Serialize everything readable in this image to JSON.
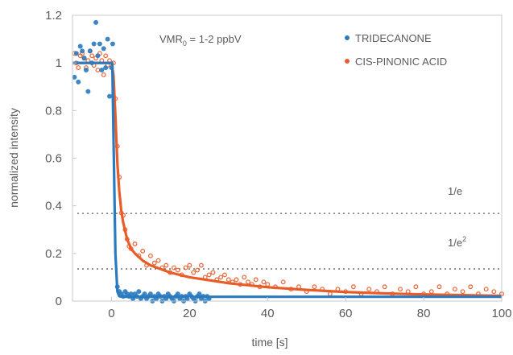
{
  "chart_data": {
    "type": "scatter",
    "xlabel": "time [s]",
    "ylabel": "normalized intensity",
    "xlim": [
      -10,
      100
    ],
    "ylim": [
      0,
      1.2
    ],
    "xticks": [
      0,
      20,
      40,
      60,
      80,
      100
    ],
    "yticks": [
      0,
      0.2,
      0.4,
      0.6,
      0.8,
      1,
      1.2
    ],
    "ytick_labels": [
      "0",
      "0.2",
      "0.4",
      "0.6",
      "0.8",
      "1",
      "1.2"
    ],
    "legend_position": "top-right",
    "annotation": {
      "main": "VMR",
      "sub": "0",
      "tail": " = 1-2 ppbV"
    },
    "reference_lines": [
      {
        "label": "1/e",
        "y": 0.368
      },
      {
        "label": "1/e",
        "sup": "2",
        "y": 0.135
      }
    ],
    "series": [
      {
        "name": "TRIDECANONE",
        "color": "#2a7ac0",
        "points": [
          [
            -9.5,
            0.94
          ],
          [
            -9,
            1.04
          ],
          [
            -8.5,
            0.92
          ],
          [
            -8,
            1.07
          ],
          [
            -7.5,
            1.05
          ],
          [
            -7,
            1.02
          ],
          [
            -6.5,
            0.97
          ],
          [
            -6,
            0.88
          ],
          [
            -5.5,
            1.05
          ],
          [
            -5,
            1.0
          ],
          [
            -4.5,
            1.08
          ],
          [
            -4,
            1.17
          ],
          [
            -3.5,
            1.03
          ],
          [
            -3,
            1.08
          ],
          [
            -2.5,
            0.97
          ],
          [
            -2,
            1.06
          ],
          [
            -1.5,
            0.98
          ],
          [
            -1,
            1.1
          ],
          [
            -0.5,
            0.86
          ],
          [
            0,
            0.98
          ],
          [
            0.3,
            1.08
          ],
          [
            1.5,
            0.06
          ],
          [
            2,
            0.04
          ],
          [
            2.5,
            0.03
          ],
          [
            3,
            0.02
          ],
          [
            3.5,
            0.04
          ],
          [
            4,
            0.03
          ],
          [
            4.5,
            0.02
          ],
          [
            5,
            0.03
          ],
          [
            5.5,
            0.01
          ],
          [
            6,
            0.03
          ],
          [
            6.5,
            0.02
          ],
          [
            7,
            0.04
          ],
          [
            7.5,
            0.01
          ],
          [
            8,
            0.02
          ],
          [
            8.5,
            0.03
          ],
          [
            9,
            0.01
          ],
          [
            9.5,
            0.02
          ],
          [
            10,
            0.03
          ],
          [
            10.5,
            0.0
          ],
          [
            11,
            0.02
          ],
          [
            11.5,
            0.01
          ],
          [
            12,
            0.03
          ],
          [
            12.5,
            0.02
          ],
          [
            13,
            0.0
          ],
          [
            13.5,
            0.02
          ],
          [
            14,
            0.01
          ],
          [
            14.5,
            0.03
          ],
          [
            15,
            0.02
          ],
          [
            15.5,
            0.01
          ],
          [
            16,
            0.0
          ],
          [
            16.5,
            0.02
          ],
          [
            17,
            0.03
          ],
          [
            17.5,
            0.01
          ],
          [
            18,
            0.02
          ],
          [
            18.5,
            0.0
          ],
          [
            19,
            0.02
          ],
          [
            19.5,
            0.01
          ],
          [
            20,
            0.03
          ],
          [
            20.5,
            0.02
          ],
          [
            21,
            0.01
          ],
          [
            21.5,
            0.0
          ],
          [
            22,
            0.02
          ],
          [
            22.5,
            0.03
          ],
          [
            23,
            0.01
          ],
          [
            23.5,
            0.02
          ],
          [
            24,
            0.0
          ],
          [
            24.5,
            0.02
          ],
          [
            25,
            0.01
          ]
        ],
        "fit": [
          [
            -10,
            1.0
          ],
          [
            0.2,
            1.0
          ],
          [
            0.6,
            0.6
          ],
          [
            1,
            0.2
          ],
          [
            1.5,
            0.04
          ],
          [
            2,
            0.02
          ],
          [
            3,
            0.018
          ],
          [
            100,
            0.018
          ]
        ]
      },
      {
        "name": "CIS-PINONIC ACID",
        "color": "#e85c2a",
        "points": [
          [
            -9.5,
            1.04
          ],
          [
            -9,
            1.0
          ],
          [
            -8.5,
            0.98
          ],
          [
            -8,
            1.03
          ],
          [
            -7.5,
            1.04
          ],
          [
            -7,
            1.02
          ],
          [
            -6.5,
            0.98
          ],
          [
            -6,
            1.01
          ],
          [
            -5.5,
            1.05
          ],
          [
            -5,
            1.03
          ],
          [
            -4.5,
            0.99
          ],
          [
            -4,
            1.02
          ],
          [
            -3.5,
            0.97
          ],
          [
            -3,
            1.04
          ],
          [
            -2.5,
            1.01
          ],
          [
            -2,
            0.95
          ],
          [
            -1.5,
            1.03
          ],
          [
            -1,
            0.99
          ],
          [
            -0.5,
            1.01
          ],
          [
            0.5,
            1.0
          ],
          [
            1,
            0.85
          ],
          [
            1.5,
            0.65
          ],
          [
            2,
            0.52
          ],
          [
            2.5,
            0.37
          ],
          [
            3,
            0.36
          ],
          [
            3.5,
            0.3
          ],
          [
            4,
            0.26
          ],
          [
            4.5,
            0.23
          ],
          [
            5,
            0.22
          ],
          [
            6,
            0.24
          ],
          [
            7,
            0.19
          ],
          [
            8,
            0.21
          ],
          [
            9,
            0.15
          ],
          [
            10,
            0.19
          ],
          [
            11,
            0.16
          ],
          [
            12,
            0.17
          ],
          [
            13,
            0.14
          ],
          [
            14,
            0.15
          ],
          [
            15,
            0.12
          ],
          [
            16,
            0.14
          ],
          [
            17,
            0.13
          ],
          [
            18,
            0.11
          ],
          [
            19,
            0.14
          ],
          [
            20,
            0.15
          ],
          [
            21,
            0.12
          ],
          [
            22,
            0.13
          ],
          [
            23,
            0.15
          ],
          [
            24,
            0.1
          ],
          [
            25,
            0.11
          ],
          [
            26,
            0.12
          ],
          [
            27,
            0.09
          ],
          [
            28,
            0.1
          ],
          [
            29,
            0.11
          ],
          [
            30,
            0.09
          ],
          [
            31,
            0.08
          ],
          [
            32,
            0.09
          ],
          [
            33,
            0.07
          ],
          [
            34,
            0.1
          ],
          [
            35,
            0.08
          ],
          [
            36,
            0.07
          ],
          [
            37,
            0.09
          ],
          [
            38,
            0.06
          ],
          [
            39,
            0.08
          ],
          [
            40,
            0.07
          ],
          [
            42,
            0.06
          ],
          [
            44,
            0.08
          ],
          [
            46,
            0.05
          ],
          [
            48,
            0.06
          ],
          [
            50,
            0.04
          ],
          [
            52,
            0.06
          ],
          [
            54,
            0.05
          ],
          [
            56,
            0.03
          ],
          [
            58,
            0.05
          ],
          [
            60,
            0.04
          ],
          [
            62,
            0.06
          ],
          [
            64,
            0.03
          ],
          [
            66,
            0.05
          ],
          [
            68,
            0.04
          ],
          [
            70,
            0.06
          ],
          [
            72,
            0.03
          ],
          [
            74,
            0.05
          ],
          [
            76,
            0.04
          ],
          [
            78,
            0.06
          ],
          [
            80,
            0.03
          ],
          [
            82,
            0.04
          ],
          [
            84,
            0.06
          ],
          [
            86,
            0.03
          ],
          [
            88,
            0.05
          ],
          [
            90,
            0.04
          ],
          [
            92,
            0.06
          ],
          [
            94,
            0.03
          ],
          [
            96,
            0.05
          ],
          [
            98,
            0.04
          ],
          [
            100,
            0.03
          ]
        ],
        "fit": [
          [
            -10,
            1.0
          ],
          [
            0,
            1.0
          ],
          [
            0.5,
            0.95
          ],
          [
            1,
            0.78
          ],
          [
            1.5,
            0.58
          ],
          [
            2,
            0.46
          ],
          [
            2.5,
            0.38
          ],
          [
            3,
            0.33
          ],
          [
            4,
            0.26
          ],
          [
            5,
            0.22
          ],
          [
            6,
            0.2
          ],
          [
            8,
            0.17
          ],
          [
            10,
            0.15
          ],
          [
            15,
            0.12
          ],
          [
            20,
            0.1
          ],
          [
            30,
            0.075
          ],
          [
            40,
            0.058
          ],
          [
            50,
            0.047
          ],
          [
            60,
            0.038
          ],
          [
            70,
            0.032
          ],
          [
            80,
            0.028
          ],
          [
            90,
            0.025
          ],
          [
            100,
            0.022
          ]
        ]
      }
    ]
  }
}
